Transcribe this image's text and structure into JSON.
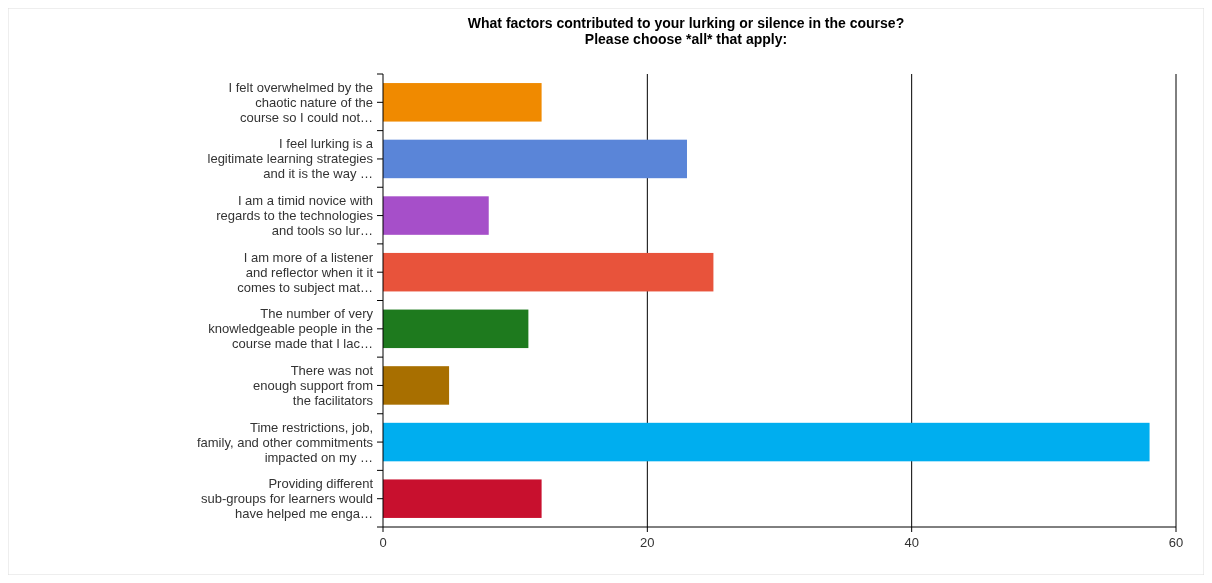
{
  "chart_data": {
    "type": "bar",
    "orientation": "horizontal",
    "title": "What factors contributed to your lurking or silence in the course?\nPlease choose *all* that apply:",
    "categories": [
      "I felt overwhelmed by the\nchaotic nature of the\ncourse so I could not…",
      "I feel lurking is a\nlegitimate learning strategies\nand it is the way …",
      "I am a timid novice with\nregards to the technologies\nand tools so lur…",
      "I am more of a listener\nand reflector when it it\ncomes to subject mat…",
      "The number of very\nknowledgeable people in the\ncourse made that I lac…",
      "There was not\nenough support from\nthe facilitators",
      "Time restrictions, job,\nfamily, and other commitments\nimpacted on my …",
      "Providing different\nsub-groups for learners would\nhave helped me enga…"
    ],
    "values": [
      12,
      23,
      8,
      25,
      11,
      5,
      58,
      12
    ],
    "colors": [
      "#f08a00",
      "#5a85d8",
      "#a64fc9",
      "#e8533b",
      "#1e7a1e",
      "#a86f00",
      "#00aeef",
      "#c8102e"
    ],
    "xlim": [
      0,
      60
    ],
    "xticks": [
      0,
      20,
      40,
      60
    ],
    "grid": "x"
  }
}
